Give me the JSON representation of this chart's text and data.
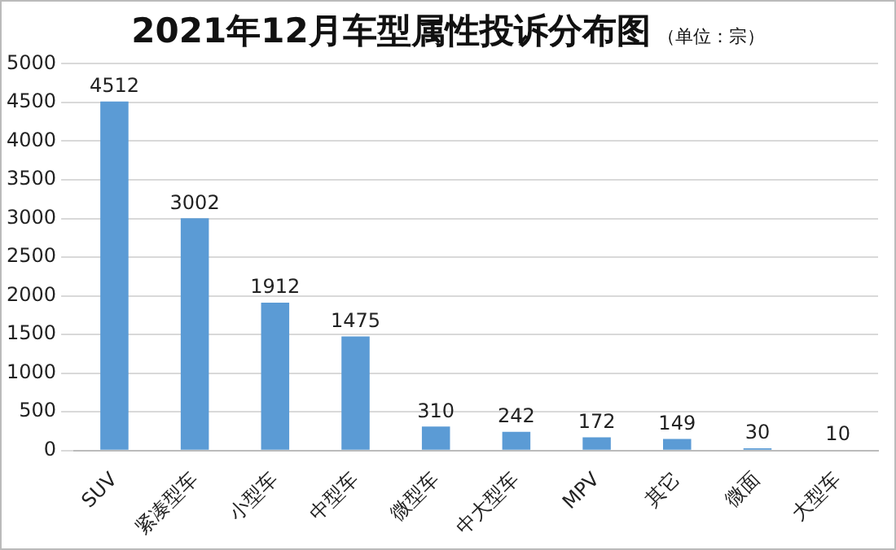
{
  "chart_data": {
    "type": "bar",
    "title": "2021年12月车型属性投诉分布图",
    "subtitle": "（单位：宗）",
    "categories": [
      "SUV",
      "紧凑型车",
      "小型车",
      "中型车",
      "微型车",
      "中大型车",
      "MPV",
      "其它",
      "微面",
      "大型车"
    ],
    "values": [
      4512,
      3002,
      1912,
      1475,
      310,
      242,
      172,
      149,
      30,
      10
    ],
    "color": "#5b9bd5",
    "ylim": [
      0,
      5000
    ],
    "yticks": [
      0,
      500,
      1000,
      1500,
      2000,
      2500,
      3000,
      3500,
      4000,
      4500,
      5000
    ],
    "grid": "y",
    "data_labels": true,
    "legend": false
  }
}
